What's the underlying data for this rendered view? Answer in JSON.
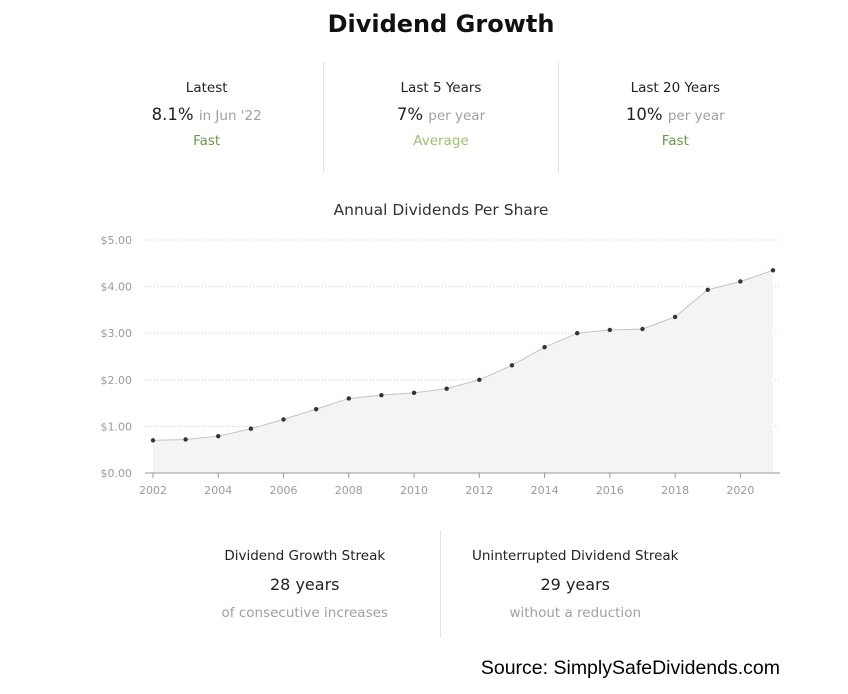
{
  "title": "Dividend Growth",
  "stats": [
    {
      "label": "Latest",
      "value": "8.1%",
      "unit": "in Jun '22",
      "rating": "Fast",
      "rating_color": "#6a9a45"
    },
    {
      "label": "Last 5 Years",
      "value": "7%",
      "unit": "per year",
      "rating": "Average",
      "rating_color": "#9cc06d"
    },
    {
      "label": "Last 20 Years",
      "value": "10%",
      "unit": "per year",
      "rating": "Fast",
      "rating_color": "#6a9a45"
    }
  ],
  "chart_data": {
    "type": "area",
    "title": "Annual Dividends Per Share",
    "x": [
      2002,
      2003,
      2004,
      2005,
      2006,
      2007,
      2008,
      2009,
      2010,
      2011,
      2012,
      2013,
      2014,
      2015,
      2016,
      2017,
      2018,
      2019,
      2020,
      2021
    ],
    "values": [
      0.7,
      0.72,
      0.79,
      0.95,
      1.15,
      1.37,
      1.6,
      1.67,
      1.72,
      1.81,
      2.0,
      2.31,
      2.7,
      3.0,
      3.07,
      3.09,
      3.35,
      3.93,
      4.11,
      4.35
    ],
    "ylim": [
      0,
      5
    ],
    "y_ticks": [
      0,
      1,
      2,
      3,
      4,
      5
    ],
    "y_tick_labels": [
      "$0.00",
      "$1.00",
      "$2.00",
      "$3.00",
      "$4.00",
      "$5.00"
    ],
    "x_ticks": [
      2002,
      2004,
      2006,
      2008,
      2010,
      2012,
      2014,
      2016,
      2018,
      2020
    ],
    "x_tick_labels": [
      "2002",
      "2004",
      "2006",
      "2008",
      "2010",
      "2012",
      "2014",
      "2016",
      "2018",
      "2020"
    ],
    "grid": true,
    "fill_color": "#f4f4f4",
    "line_color": "#c4c4c4",
    "point_color": "#333333"
  },
  "streaks": [
    {
      "label": "Dividend Growth Streak",
      "value": "28 years",
      "sub": "of consecutive increases"
    },
    {
      "label": "Uninterrupted Dividend Streak",
      "value": "29 years",
      "sub": "without a reduction"
    }
  ],
  "source": "Source: SimplySafeDividends.com"
}
